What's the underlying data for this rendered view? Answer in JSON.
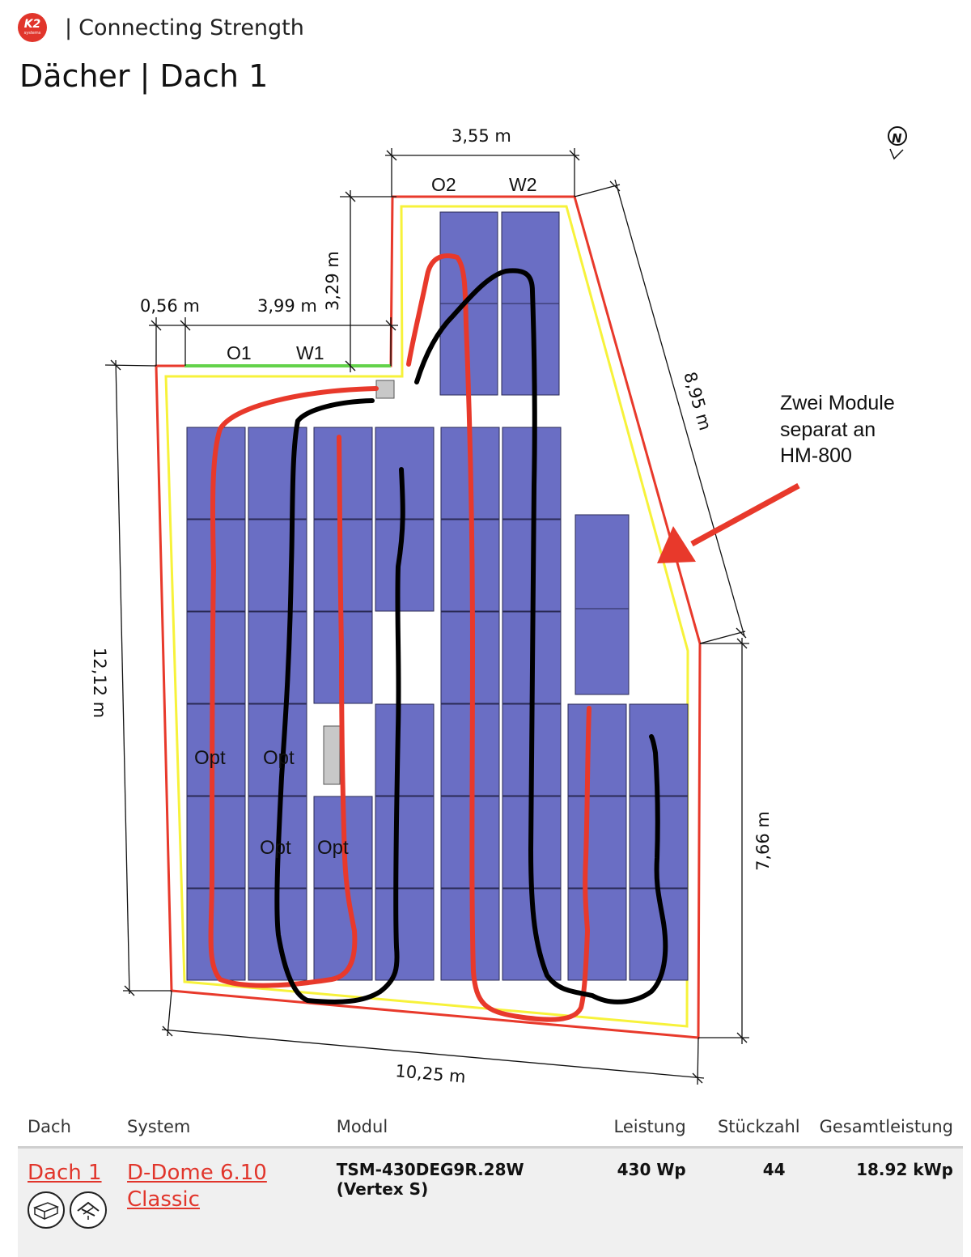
{
  "header": {
    "logo_text": "K2",
    "logo_sub": "systems",
    "separator": "|",
    "tagline": "Connecting Strength"
  },
  "page_title": "Dächer | Dach 1",
  "plan": {
    "dimensions": {
      "top": "3,55 m",
      "left_offset": "0,56 m",
      "step_width": "3,99 m",
      "step_height": "3,29 m",
      "diagonal": "8,95 m",
      "left_height": "12,12 m",
      "right_height": "7,66 m",
      "bottom": "10,25 m"
    },
    "labels": {
      "o1": "O1",
      "w1": "W1",
      "o2": "O2",
      "w2": "W2"
    },
    "optimizers": [
      "Opt",
      "Opt",
      "Opt",
      "Opt"
    ],
    "annotation": [
      "Zwei Module",
      "separat an",
      "HM-800"
    ],
    "colors": {
      "module": "#6a6ec4",
      "roof_outline": "#e8392b",
      "inner_edge": "#f7f23a",
      "eave": "#63d24a",
      "string_red": "#e8392b",
      "string_black": "#000000"
    },
    "north_icon": "north-arrow-icon"
  },
  "table": {
    "headers": {
      "dach": "Dach",
      "system": "System",
      "modul": "Modul",
      "leistung": "Leistung",
      "stueckzahl": "Stückzahl",
      "gesamtleistung": "Gesamtleistung"
    },
    "rows": [
      {
        "dach": "Dach 1",
        "system": "D-Dome 6.10 Classic",
        "modul": "TSM-430DEG9R.28W (Vertex S)",
        "leistung": "430 Wp",
        "stueckzahl": "44",
        "gesamtleistung": "18.92 kWp",
        "icons": [
          "flat-roof-box-icon",
          "roof-mount-icon"
        ]
      }
    ]
  }
}
